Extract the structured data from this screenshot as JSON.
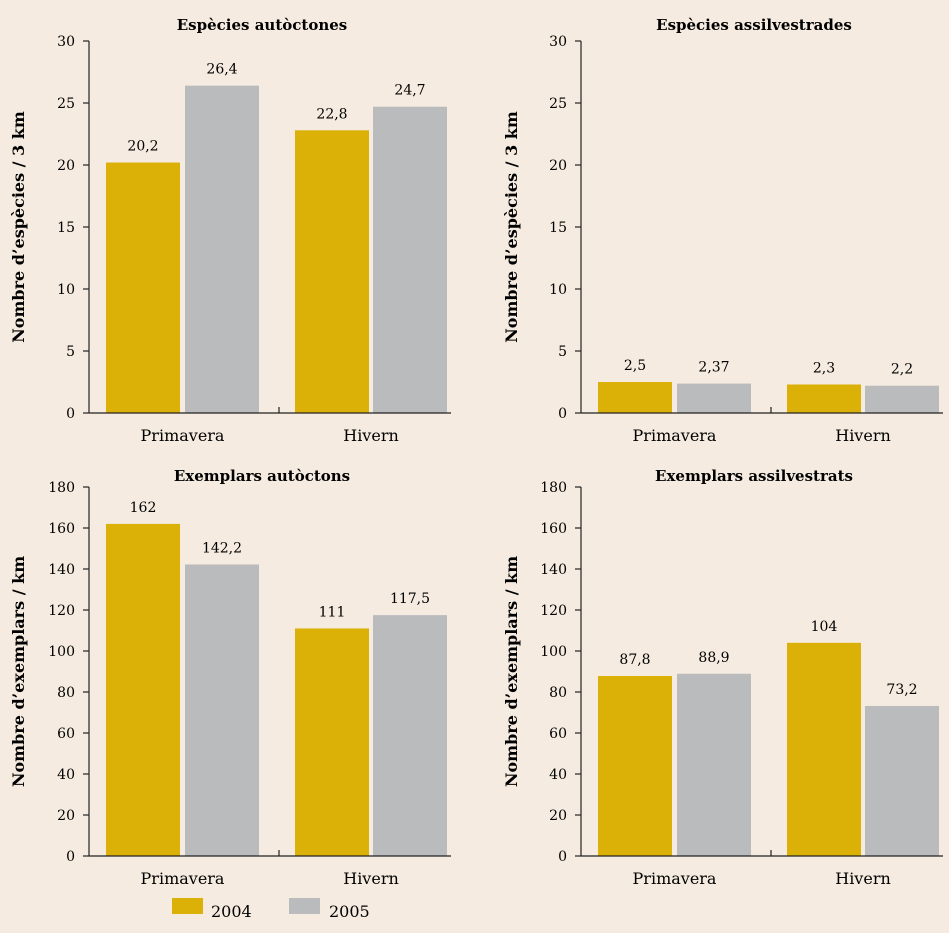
{
  "colors": {
    "2004": "#dbb108",
    "2005": "#babbbd",
    "axis": "#222222",
    "background": "#f5ebe0"
  },
  "legend": {
    "items": [
      {
        "label": "2004",
        "color": "#dbb108"
      },
      {
        "label": "2005",
        "color": "#babbbd"
      }
    ]
  },
  "chart_data": [
    {
      "type": "bar",
      "title": "Espècies autòctones",
      "ylabel": "Nombre d’espècies / 3 km",
      "categories": [
        "Primavera",
        "Hivern"
      ],
      "yticks": [
        "0",
        "5",
        "10",
        "15",
        "20",
        "25",
        "30"
      ],
      "ylim": [
        0,
        30
      ],
      "series": [
        {
          "name": "2004",
          "values": [
            20.2,
            22.8
          ],
          "labels": [
            "20,2",
            "22,8"
          ]
        },
        {
          "name": "2005",
          "values": [
            26.4,
            24.7
          ],
          "labels": [
            "26,4",
            "24,7"
          ]
        }
      ]
    },
    {
      "type": "bar",
      "title": "Espècies assilvestrades",
      "ylabel": "Nombre d’espècies / 3 km",
      "categories": [
        "Primavera",
        "Hivern"
      ],
      "yticks": [
        "0",
        "5",
        "10",
        "15",
        "20",
        "25",
        "30"
      ],
      "ylim": [
        0,
        30
      ],
      "series": [
        {
          "name": "2004",
          "values": [
            2.5,
            2.3
          ],
          "labels": [
            "2,5",
            "2,3"
          ]
        },
        {
          "name": "2005",
          "values": [
            2.37,
            2.2
          ],
          "labels": [
            "2,37",
            "2,2"
          ]
        }
      ]
    },
    {
      "type": "bar",
      "title": "Exemplars autòctons",
      "ylabel": "Nombre d’exemplars / km",
      "categories": [
        "Primavera",
        "Hivern"
      ],
      "yticks": [
        "0",
        "20",
        "40",
        "60",
        "80",
        "100",
        "120",
        "140",
        "160",
        "180"
      ],
      "ylim": [
        0,
        180
      ],
      "series": [
        {
          "name": "2004",
          "values": [
            162,
            111
          ],
          "labels": [
            "162",
            "111"
          ]
        },
        {
          "name": "2005",
          "values": [
            142.2,
            117.5
          ],
          "labels": [
            "142,2",
            "117,5"
          ]
        }
      ]
    },
    {
      "type": "bar",
      "title": "Exemplars assilvestrats",
      "ylabel": "Nombre d’exemplars / km",
      "categories": [
        "Primavera",
        "Hivern"
      ],
      "yticks": [
        "0",
        "20",
        "40",
        "60",
        "80",
        "100",
        "120",
        "140",
        "160",
        "180"
      ],
      "ylim": [
        0,
        180
      ],
      "series": [
        {
          "name": "2004",
          "values": [
            87.8,
            104
          ],
          "labels": [
            "87,8",
            "104"
          ]
        },
        {
          "name": "2005",
          "values": [
            88.9,
            73.2
          ],
          "labels": [
            "88,9",
            "73,2"
          ]
        }
      ]
    }
  ]
}
